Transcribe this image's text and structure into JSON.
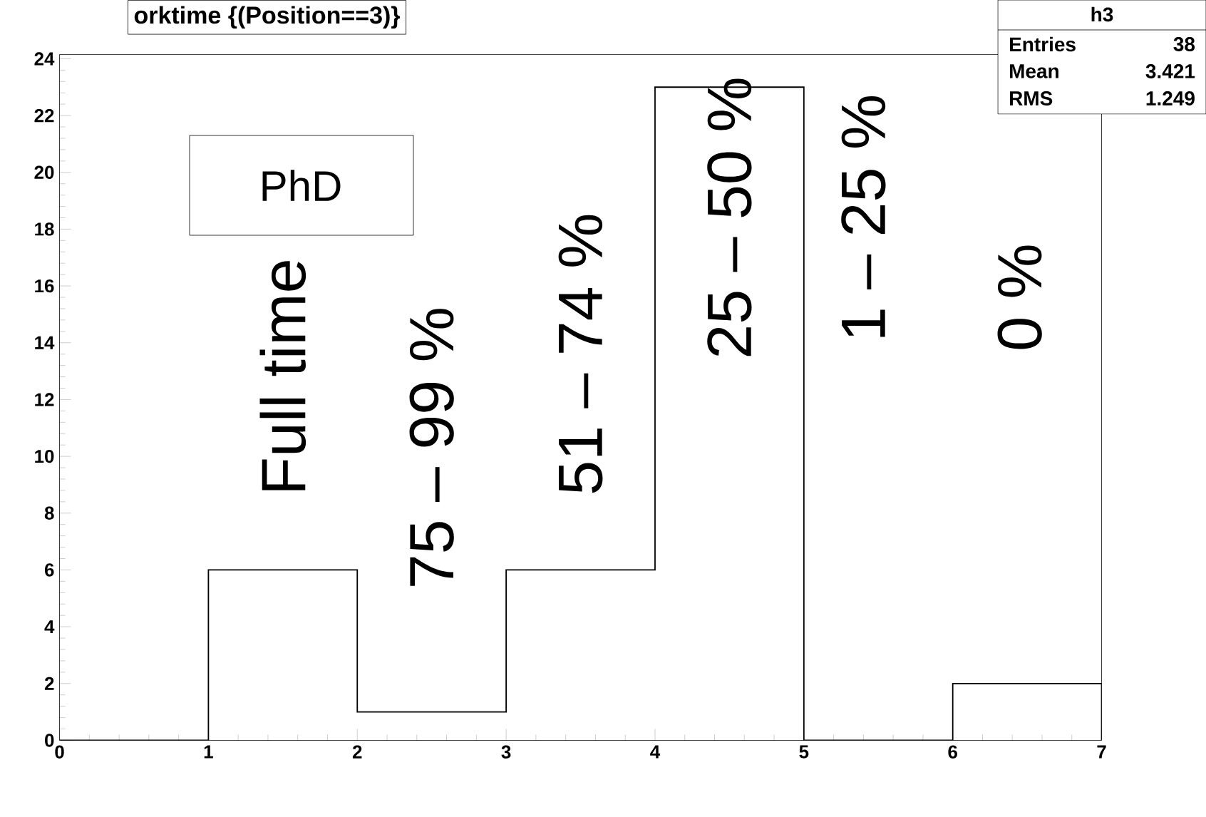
{
  "chart_data": {
    "type": "histogram",
    "title": "orktime {(Position==3)}",
    "bins": [
      0,
      1,
      2,
      3,
      4,
      5,
      6,
      7
    ],
    "values": [
      0,
      6,
      1,
      6,
      23,
      0,
      2
    ],
    "color": "#000000",
    "xlim": [
      0,
      7
    ],
    "xticks": [
      0,
      1,
      2,
      3,
      4,
      5,
      6,
      7
    ],
    "ylim": [
      0,
      24.15
    ],
    "yticks": [
      0,
      2,
      4,
      6,
      8,
      10,
      12,
      14,
      16,
      18,
      20,
      22,
      24
    ],
    "grid": false,
    "annotations": [
      "h3",
      "Entries",
      "38",
      "Mean",
      "3.421",
      "RMS",
      "1.249",
      "PhD",
      "Full time",
      "75 – 99 %",
      "51 – 74 %",
      "25 – 50 %",
      "1 – 25 %",
      "0 %"
    ]
  }
}
